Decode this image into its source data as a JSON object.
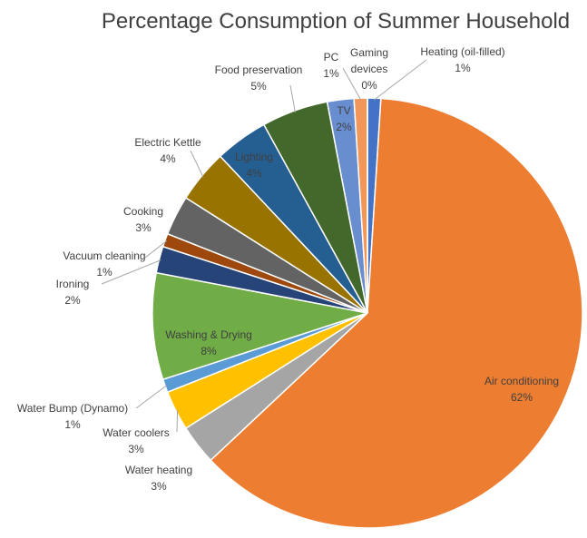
{
  "chart_data": {
    "type": "pie",
    "title": "Percentage Consumption of Summer Household",
    "categories": [
      "Heating (oil-filled)",
      "Air conditioning",
      "Water heating",
      "Water coolers",
      "Water Bump (Dynamo)",
      "Washing & Drying",
      "Ironing",
      "Vacuum cleaning",
      "Cooking",
      "Electric Kettle",
      "Lighting",
      "Food preservation",
      "TV",
      "PC",
      "Gaming devices"
    ],
    "values": [
      1,
      62,
      3,
      3,
      1,
      8,
      2,
      1,
      3,
      4,
      4,
      5,
      2,
      1,
      0
    ],
    "value_labels": [
      "1%",
      "62%",
      "3%",
      "3%",
      "1%",
      "8%",
      "2%",
      "1%",
      "3%",
      "4%",
      "4%",
      "5%",
      "2%",
      "1%",
      "0%"
    ],
    "colors": [
      "#4472c4",
      "#ed7d31",
      "#a5a5a5",
      "#ffc000",
      "#5b9bd5",
      "#70ad47",
      "#264478",
      "#9e480e",
      "#636363",
      "#997300",
      "#255e91",
      "#43682b",
      "#698ed0",
      "#f1975a",
      "#b7b7b7"
    ]
  }
}
